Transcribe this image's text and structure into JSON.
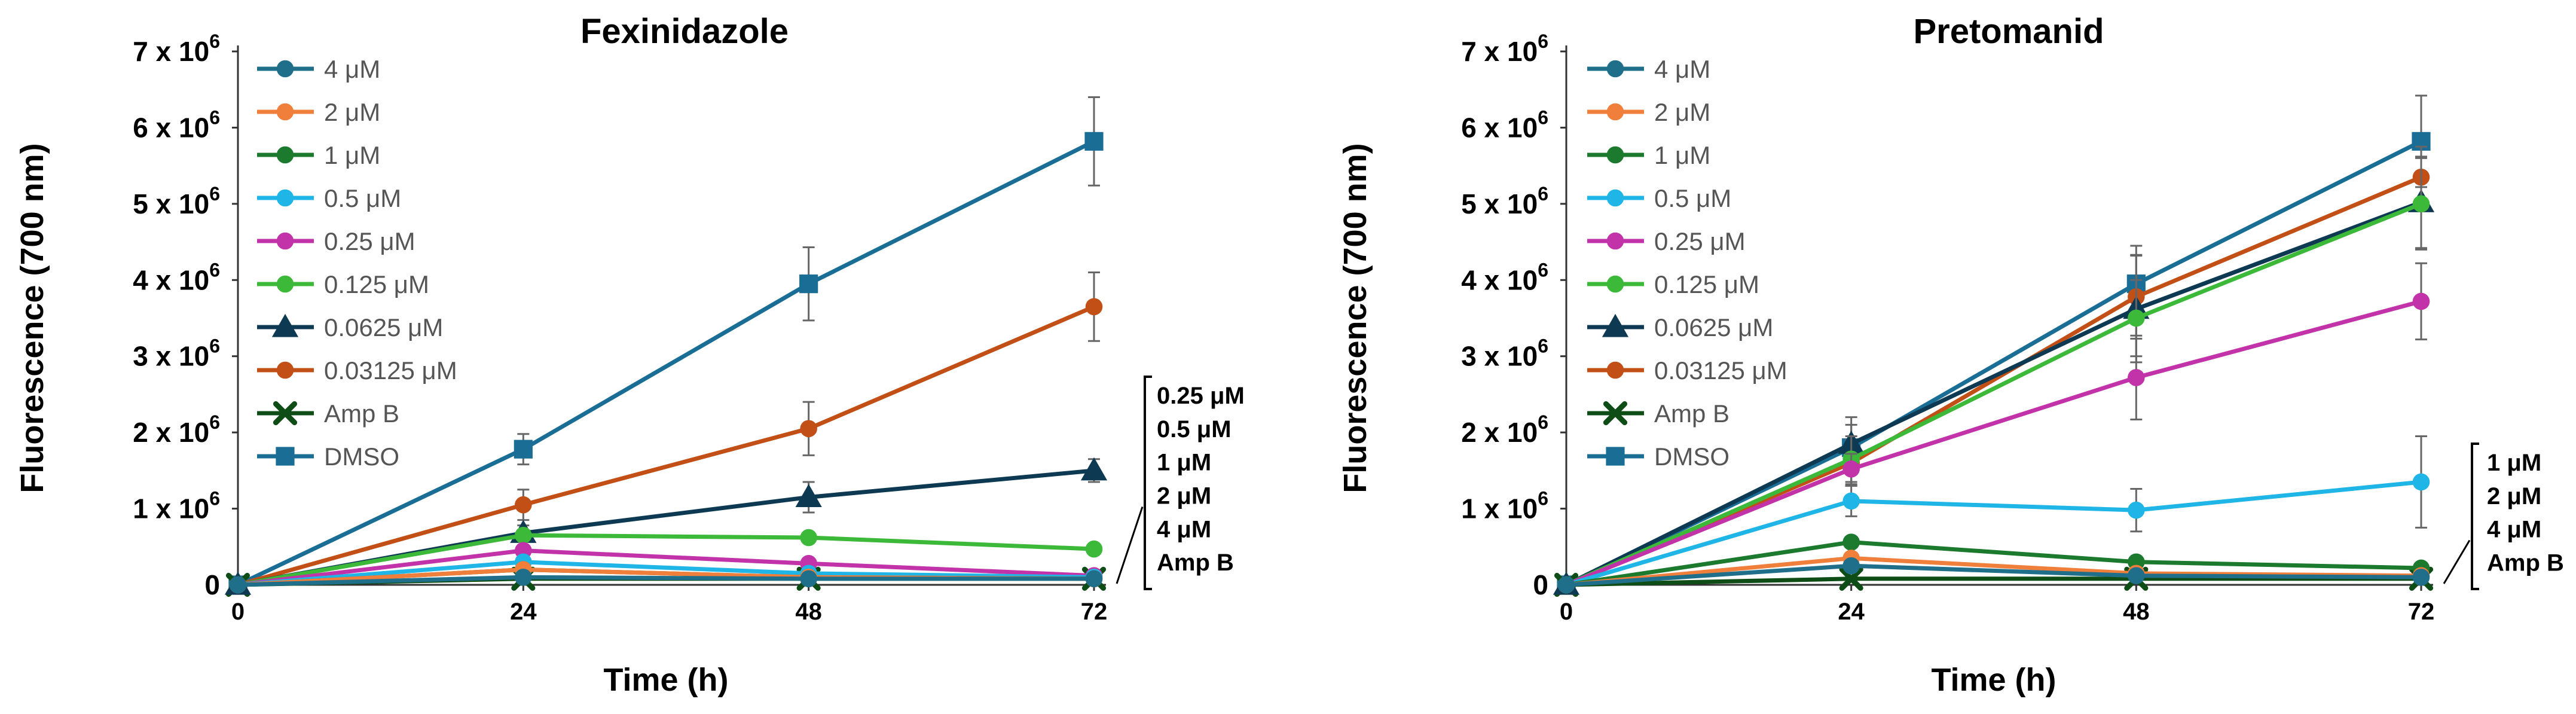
{
  "chart_data": [
    {
      "type": "line",
      "title": "Fexinidazole",
      "xlabel": "Time (h)",
      "ylabel": "Fluorescence (700 nm)",
      "x": [
        0,
        24,
        48,
        72
      ],
      "xticks": [
        "0",
        "24",
        "48",
        "72"
      ],
      "ylim": [
        0,
        7000000
      ],
      "yticks": [
        {
          "base": "0",
          "exp": ""
        },
        {
          "base": "1 x 10",
          "exp": "6"
        },
        {
          "base": "2 x 10",
          "exp": "6"
        },
        {
          "base": "3 x 10",
          "exp": "6"
        },
        {
          "base": "4 x 10",
          "exp": "6"
        },
        {
          "base": "5 x 10",
          "exp": "6"
        },
        {
          "base": "6 x 10",
          "exp": "6"
        },
        {
          "base": "7 x 10",
          "exp": "6"
        }
      ],
      "legend_position": "top-left",
      "series": [
        {
          "name": "4 μM",
          "color": "#1F6F8B",
          "marker": "circle",
          "values": [
            0,
            100000,
            80000,
            80000
          ],
          "errors": [
            0,
            30000,
            30000,
            30000
          ]
        },
        {
          "name": "2 μM",
          "color": "#F07F3C",
          "marker": "circle",
          "values": [
            0,
            200000,
            100000,
            80000
          ],
          "errors": [
            0,
            30000,
            30000,
            30000
          ]
        },
        {
          "name": "1 μM",
          "color": "#1B7A2E",
          "marker": "circle",
          "values": [
            0,
            200000,
            100000,
            80000
          ],
          "errors": [
            0,
            30000,
            30000,
            30000
          ]
        },
        {
          "name": "0.5 μM",
          "color": "#1FB5E6",
          "marker": "circle",
          "values": [
            0,
            300000,
            150000,
            100000
          ],
          "errors": [
            0,
            40000,
            30000,
            30000
          ]
        },
        {
          "name": "0.25 μM",
          "color": "#C232A9",
          "marker": "circle",
          "values": [
            0,
            450000,
            280000,
            120000
          ],
          "errors": [
            0,
            50000,
            40000,
            30000
          ]
        },
        {
          "name": "0.125 μM",
          "color": "#3DB93A",
          "marker": "circle",
          "values": [
            0,
            650000,
            620000,
            470000
          ],
          "errors": [
            0,
            60000,
            60000,
            50000
          ]
        },
        {
          "name": "0.0625 μM",
          "color": "#0D3A52",
          "marker": "triangle",
          "values": [
            0,
            680000,
            1150000,
            1500000
          ],
          "errors": [
            0,
            100000,
            200000,
            150000
          ]
        },
        {
          "name": "0.03125 μM",
          "color": "#C24F16",
          "marker": "circle",
          "values": [
            0,
            1050000,
            2050000,
            3650000
          ],
          "errors": [
            0,
            200000,
            350000,
            450000
          ]
        },
        {
          "name": "Amp B",
          "color": "#0F4D17",
          "marker": "x",
          "values": [
            0,
            80000,
            80000,
            80000
          ],
          "errors": [
            0,
            20000,
            20000,
            20000
          ]
        },
        {
          "name": "DMSO",
          "color": "#1A6E96",
          "marker": "square",
          "values": [
            0,
            1780000,
            3950000,
            5820000
          ],
          "errors": [
            0,
            200000,
            480000,
            580000
          ]
        }
      ],
      "bracket_labels": [
        "0.25 μM",
        "0.5 μM",
        "1 μM",
        "2 μM",
        "4 μM",
        "Amp B"
      ]
    },
    {
      "type": "line",
      "title": "Pretomanid",
      "xlabel": "Time (h)",
      "ylabel": "Fluorescence (700 nm)",
      "x": [
        0,
        24,
        48,
        72
      ],
      "xticks": [
        "0",
        "24",
        "48",
        "72"
      ],
      "ylim": [
        0,
        7000000
      ],
      "yticks": [
        {
          "base": "0",
          "exp": ""
        },
        {
          "base": "1 x 10",
          "exp": "6"
        },
        {
          "base": "2 x 10",
          "exp": "6"
        },
        {
          "base": "3 x 10",
          "exp": "6"
        },
        {
          "base": "4 x 10",
          "exp": "6"
        },
        {
          "base": "5 x 10",
          "exp": "6"
        },
        {
          "base": "6 x 10",
          "exp": "6"
        },
        {
          "base": "7 x 10",
          "exp": "6"
        }
      ],
      "legend_position": "top-left",
      "series": [
        {
          "name": "4 μM",
          "color": "#1F6F8B",
          "marker": "circle",
          "values": [
            0,
            250000,
            120000,
            100000
          ],
          "errors": [
            0,
            40000,
            30000,
            30000
          ]
        },
        {
          "name": "2 μM",
          "color": "#F07F3C",
          "marker": "circle",
          "values": [
            0,
            350000,
            150000,
            120000
          ],
          "errors": [
            0,
            50000,
            30000,
            30000
          ]
        },
        {
          "name": "1 μM",
          "color": "#1B7A2E",
          "marker": "circle",
          "values": [
            0,
            560000,
            300000,
            220000
          ],
          "errors": [
            0,
            70000,
            50000,
            40000
          ]
        },
        {
          "name": "0.5 μM",
          "color": "#1FB5E6",
          "marker": "circle",
          "values": [
            0,
            1100000,
            980000,
            1350000
          ],
          "errors": [
            0,
            200000,
            280000,
            600000
          ]
        },
        {
          "name": "0.25 μM",
          "color": "#C232A9",
          "marker": "circle",
          "values": [
            0,
            1520000,
            2720000,
            3720000
          ],
          "errors": [
            0,
            200000,
            550000,
            500000
          ]
        },
        {
          "name": "0.125 μM",
          "color": "#3DB93A",
          "marker": "circle",
          "values": [
            0,
            1650000,
            3500000,
            5000000
          ],
          "errors": [
            0,
            300000,
            500000,
            600000
          ]
        },
        {
          "name": "0.0625 μM",
          "color": "#0D3A52",
          "marker": "triangle",
          "values": [
            0,
            1850000,
            3620000,
            5020000
          ],
          "errors": [
            0,
            350000,
            700000,
            600000
          ]
        },
        {
          "name": "0.03125 μM",
          "color": "#C24F16",
          "marker": "circle",
          "values": [
            0,
            1600000,
            3780000,
            5350000
          ],
          "errors": [
            0,
            300000,
            550000,
            400000
          ]
        },
        {
          "name": "Amp B",
          "color": "#0F4D17",
          "marker": "x",
          "values": [
            0,
            80000,
            80000,
            80000
          ],
          "errors": [
            0,
            20000,
            20000,
            20000
          ]
        },
        {
          "name": "DMSO",
          "color": "#1A6E96",
          "marker": "square",
          "values": [
            0,
            1800000,
            3950000,
            5820000
          ],
          "errors": [
            0,
            300000,
            500000,
            600000
          ]
        }
      ],
      "bracket_labels": [
        "1 μM",
        "2 μM",
        "4 μM",
        "Amp B"
      ]
    }
  ]
}
